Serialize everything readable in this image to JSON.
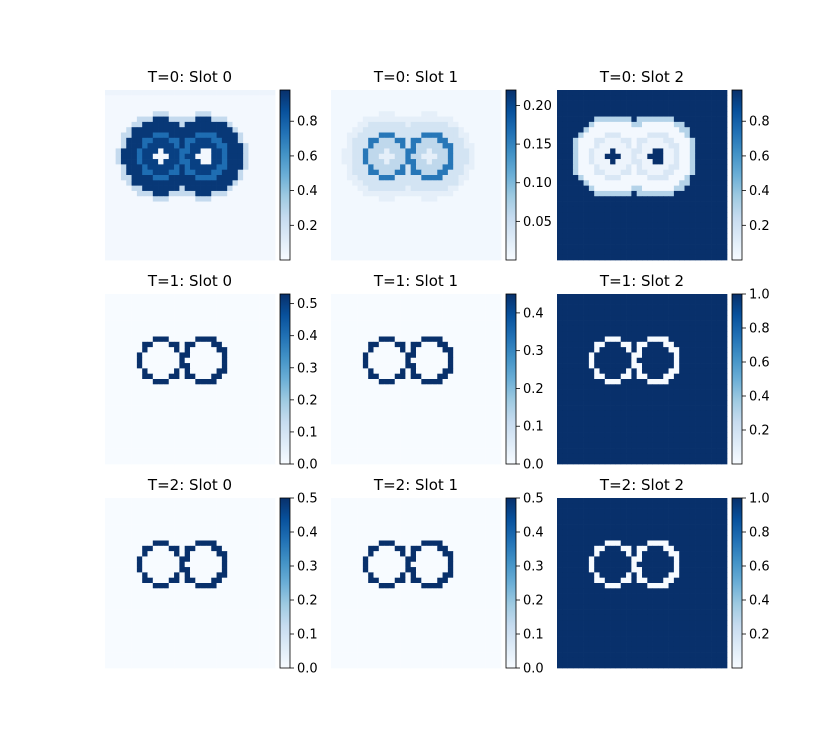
{
  "colormap": {
    "name": "Blues",
    "stops": [
      "#f7fbff",
      "#deebf7",
      "#c6dbef",
      "#9ecae1",
      "#6baed6",
      "#4292c6",
      "#2171b5",
      "#08519c",
      "#08306b"
    ]
  },
  "chart_data": [
    {
      "type": "heatmap",
      "title": "T=0: Slot 0",
      "pattern": "t0_blob",
      "clim": [
        0.0,
        0.98
      ],
      "colorbar_ticks": [
        "0.2",
        "0.4",
        "0.6",
        "0.8"
      ]
    },
    {
      "type": "heatmap",
      "title": "T=0: Slot 1",
      "pattern": "t0_faint",
      "clim": [
        0.0,
        0.22
      ],
      "colorbar_ticks": [
        "0.05",
        "0.10",
        "0.15",
        "0.20"
      ]
    },
    {
      "type": "heatmap",
      "title": "T=0: Slot 2",
      "pattern": "t0_background",
      "clim": [
        0.0,
        0.98
      ],
      "colorbar_ticks": [
        "0.2",
        "0.4",
        "0.6",
        "0.8"
      ]
    },
    {
      "type": "heatmap",
      "title": "T=1: Slot 0",
      "pattern": "rings",
      "ring_value": 0.53,
      "clim": [
        0.0,
        0.53
      ],
      "colorbar_ticks": [
        "0.0",
        "0.1",
        "0.2",
        "0.3",
        "0.4",
        "0.5"
      ]
    },
    {
      "type": "heatmap",
      "title": "T=1: Slot 1",
      "pattern": "rings",
      "ring_value": 0.45,
      "clim": [
        0.0,
        0.45
      ],
      "colorbar_ticks": [
        "0.0",
        "0.1",
        "0.2",
        "0.3",
        "0.4"
      ]
    },
    {
      "type": "heatmap",
      "title": "T=1: Slot 2",
      "pattern": "inverse_rings",
      "clim": [
        0.0,
        1.0
      ],
      "colorbar_ticks": [
        "0.2",
        "0.4",
        "0.6",
        "0.8",
        "1.0"
      ]
    },
    {
      "type": "heatmap",
      "title": "T=2: Slot 0",
      "pattern": "rings",
      "ring_value": 0.5,
      "clim": [
        0.0,
        0.5
      ],
      "colorbar_ticks": [
        "0.0",
        "0.1",
        "0.2",
        "0.3",
        "0.4",
        "0.5"
      ]
    },
    {
      "type": "heatmap",
      "title": "T=2: Slot 1",
      "pattern": "rings",
      "ring_value": 0.5,
      "clim": [
        0.0,
        0.5
      ],
      "colorbar_ticks": [
        "0.0",
        "0.1",
        "0.2",
        "0.3",
        "0.4",
        "0.5"
      ]
    },
    {
      "type": "heatmap",
      "title": "T=2: Slot 2",
      "pattern": "inverse_rings",
      "clim": [
        0.0,
        1.0
      ],
      "colorbar_ticks": [
        "0.2",
        "0.4",
        "0.6",
        "0.8",
        "1.0"
      ]
    }
  ]
}
